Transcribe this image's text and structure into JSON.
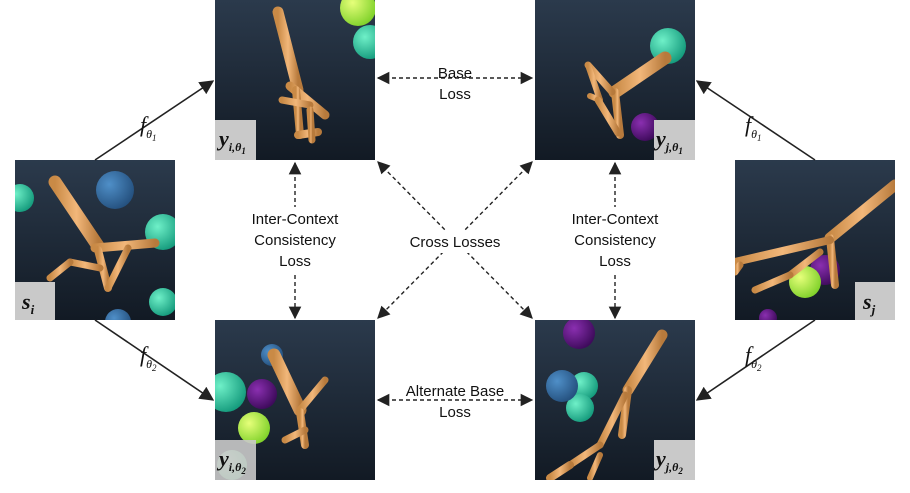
{
  "labels": {
    "base_loss_1": "Base",
    "base_loss_2": "Loss",
    "alt_base_loss_1": "Alternate Base",
    "alt_base_loss_2": "Loss",
    "cross_losses": "Cross Losses",
    "icc_left_1": "Inter-Context",
    "icc_left_2": "Consistency",
    "icc_left_3": "Loss",
    "icc_right_1": "Inter-Context",
    "icc_right_2": "Consistency",
    "icc_right_3": "Loss"
  },
  "functions": {
    "f_letter": "f",
    "theta_letter": "θ",
    "sub_1": "1",
    "sub_2": "2"
  },
  "tags": {
    "s_i_main": "s",
    "s_i_sub": "i",
    "s_j_main": "s",
    "s_j_sub": "j",
    "y_i1_main": "y",
    "y_i1_sub": "i,θ",
    "y_i1_subsub": "1",
    "y_j1_main": "y",
    "y_j1_sub": "j,θ",
    "y_j1_subsub": "1",
    "y_i2_main": "y",
    "y_i2_sub": "i,θ",
    "y_i2_subsub": "2",
    "y_j2_main": "y",
    "y_j2_sub": "j,θ",
    "y_j2_subsub": "2"
  }
}
